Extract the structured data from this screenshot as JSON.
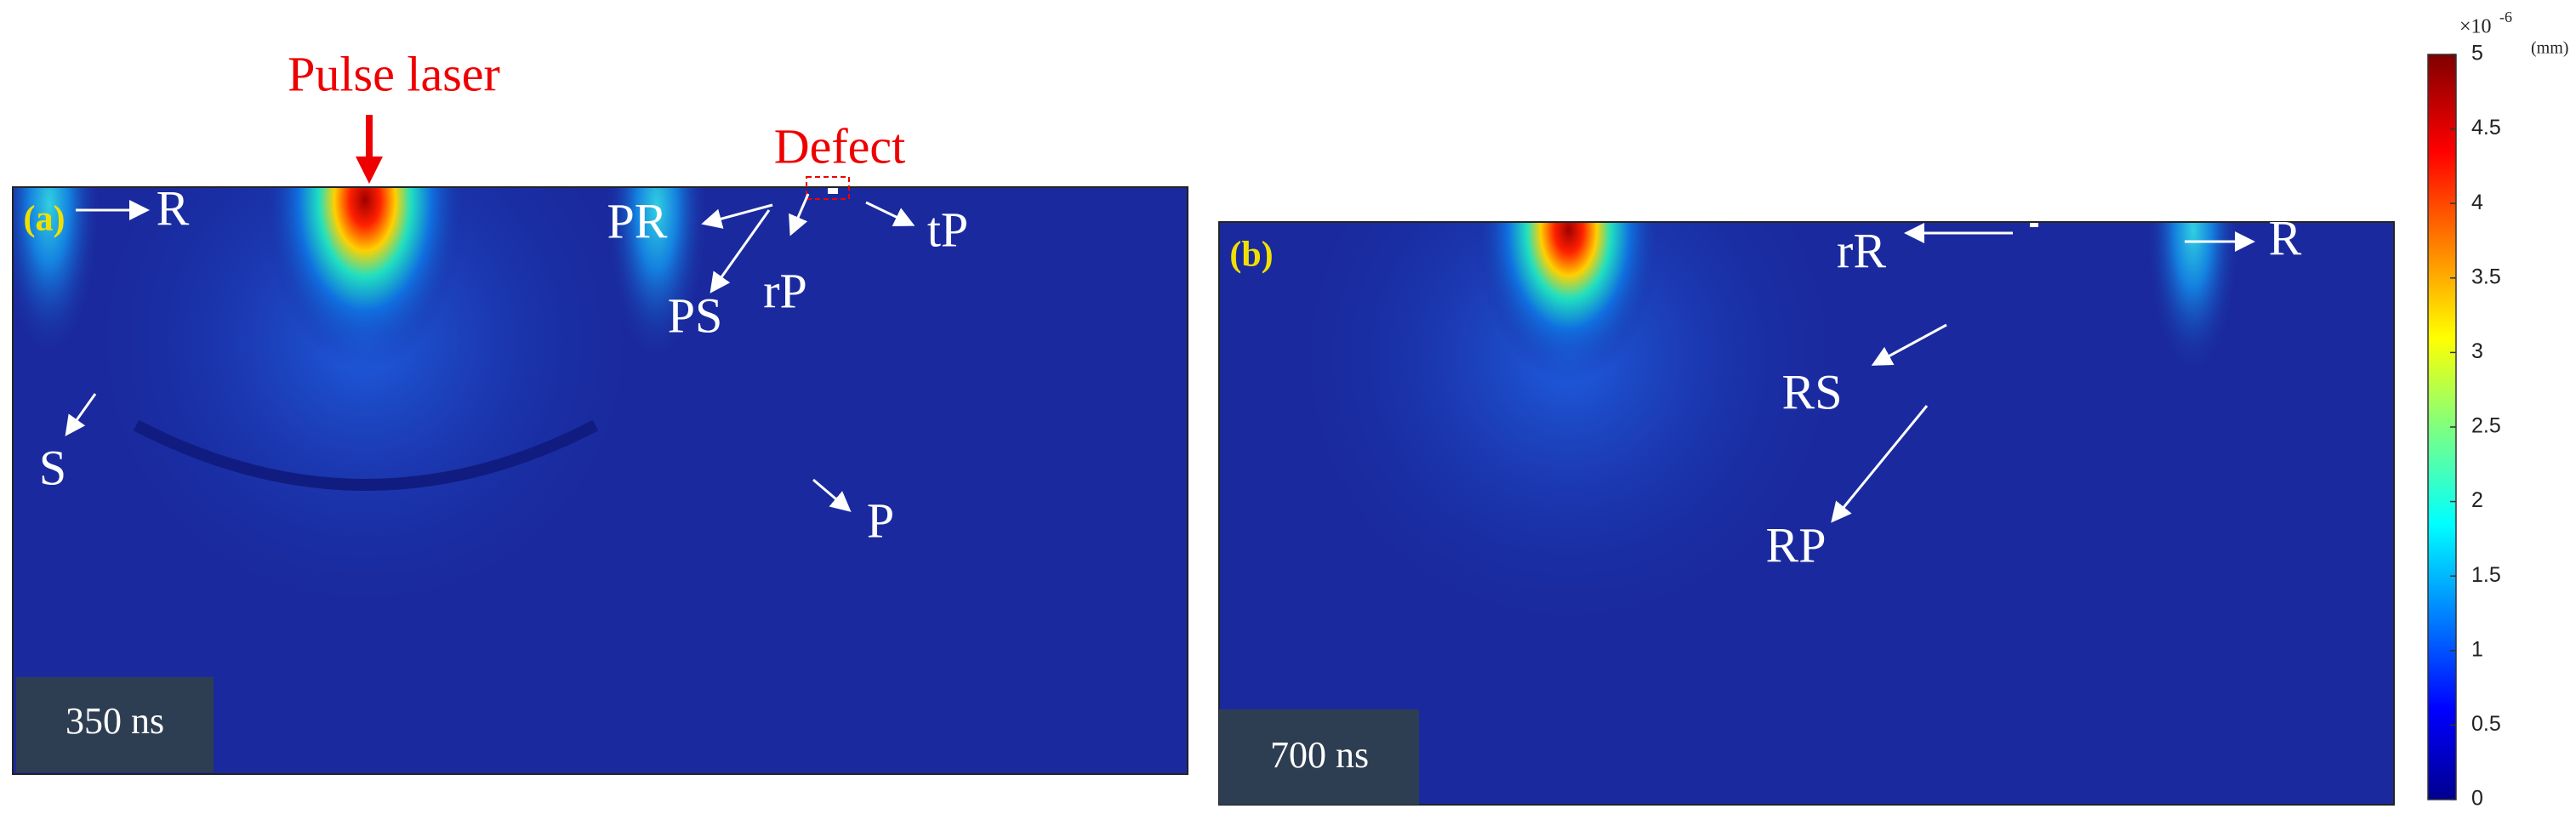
{
  "annotations": {
    "laser": "Pulse laser",
    "defect": "Defect"
  },
  "panels": [
    {
      "tag": "(a)",
      "time": "350 ns",
      "labels": [
        "R",
        "PR",
        "tP",
        "PS",
        "rP",
        "S",
        "P"
      ]
    },
    {
      "tag": "(b)",
      "time": "700 ns",
      "labels": [
        "rR",
        "R",
        "RS",
        "RP"
      ]
    }
  ],
  "colorbar": {
    "base": "×10",
    "exponent": "-6",
    "unit": "(mm)",
    "lim": [
      0,
      5
    ],
    "ticks": [
      0,
      0.5,
      1,
      1.5,
      2,
      2.5,
      3,
      3.5,
      4,
      4.5,
      5
    ]
  }
}
